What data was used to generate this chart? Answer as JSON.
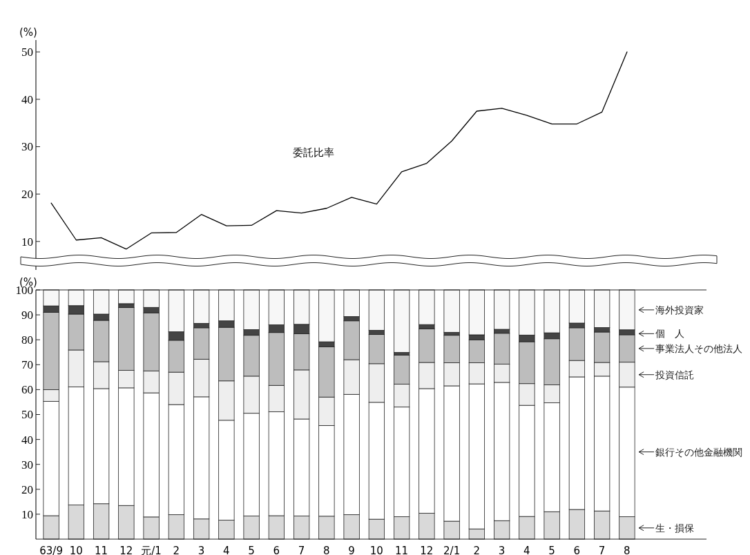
{
  "chart_data": [
    {
      "type": "line",
      "ylabel": "(%)",
      "categories": [
        null,
        null,
        null,
        null,
        null,
        null,
        null,
        null,
        null,
        null,
        null,
        null,
        null,
        null,
        null,
        null,
        null,
        null,
        null,
        null,
        null,
        null,
        null,
        null
      ],
      "series": [
        {
          "name": "委託比率",
          "color": "#000000",
          "values": [
            18.1,
            10.3,
            10.8,
            8.4,
            11.8,
            11.9,
            15.7,
            13.3,
            13.4,
            16.5,
            16.0,
            17.0,
            19.3,
            17.9,
            24.7,
            26.5,
            31.2,
            37.5,
            38.1,
            36.6,
            34.8,
            34.8,
            37.3,
            50.0
          ]
        }
      ],
      "ylim": [
        4,
        52.5
      ],
      "yticks": [
        10,
        20,
        30,
        40,
        50
      ],
      "grid": false
    },
    {
      "type": "bar",
      "stacked": true,
      "ylabel": "(%)",
      "categories": [
        "63/9",
        "10",
        "11",
        "12",
        "元/1",
        "2",
        "3",
        "4",
        "5",
        "6",
        "7",
        "8",
        "9",
        "10",
        "11",
        "12",
        "2/1",
        "2",
        "3",
        "4",
        "5",
        "6",
        "7",
        "8"
      ],
      "series": [
        {
          "name": "生・損保",
          "color": "#d9d9d9",
          "values": [
            9.4,
            13.7,
            14.2,
            13.5,
            8.9,
            9.8,
            8.1,
            7.6,
            9.3,
            9.4,
            9.3,
            9.2,
            9.8,
            8.0,
            9.0,
            10.4,
            7.2,
            4.1,
            7.4,
            9.1,
            11.0,
            11.9,
            11.3,
            9.0
          ]
        },
        {
          "name": "銀行その他金融機関",
          "color": "#ffffff",
          "values": [
            45.9,
            47.4,
            46.2,
            47.2,
            49.8,
            44.2,
            49.0,
            40.1,
            41.2,
            41.7,
            38.9,
            36.4,
            48.3,
            46.9,
            44.0,
            50.0,
            54.3,
            58.2,
            55.5,
            44.6,
            43.7,
            53.2,
            54.1,
            52.0
          ]
        },
        {
          "name": "投資信託",
          "color": "#eeeeee",
          "values": [
            4.7,
            14.8,
            10.8,
            7.0,
            8.8,
            13.0,
            15.1,
            15.8,
            14.9,
            10.6,
            19.7,
            11.4,
            13.9,
            15.5,
            9.2,
            10.5,
            9.3,
            8.5,
            7.3,
            8.7,
            7.2,
            6.6,
            5.5,
            10.0
          ]
        },
        {
          "name": "事業法人その他法人",
          "color": "#bdbdbd",
          "values": [
            31.0,
            14.4,
            16.6,
            25.2,
            23.3,
            12.8,
            12.6,
            21.5,
            16.4,
            21.2,
            14.5,
            20.2,
            15.6,
            11.7,
            11.6,
            13.5,
            11.0,
            9.2,
            12.4,
            16.8,
            18.5,
            13.1,
            12.2,
            11.0
          ]
        },
        {
          "name": "個　人",
          "color": "#444444",
          "values": [
            2.6,
            3.4,
            2.5,
            1.6,
            2.2,
            3.4,
            1.8,
            2.6,
            2.3,
            3.1,
            3.8,
            2.0,
            1.7,
            1.7,
            1.1,
            1.7,
            1.2,
            2.0,
            1.6,
            2.7,
            2.4,
            1.9,
            1.8,
            2.0
          ]
        },
        {
          "name": "海外投資家",
          "color": "#f7f7f7",
          "values": [
            6.4,
            6.3,
            9.7,
            5.5,
            7.0,
            16.8,
            13.4,
            12.4,
            15.9,
            14.0,
            13.8,
            20.8,
            10.7,
            16.2,
            25.1,
            13.9,
            17.0,
            18.0,
            15.8,
            18.1,
            17.2,
            13.3,
            15.1,
            16.0
          ]
        }
      ],
      "ylim": [
        0,
        100
      ],
      "yticks": [
        10,
        20,
        30,
        40,
        50,
        60,
        70,
        80,
        90,
        100
      ],
      "legend": "right",
      "grid": false
    }
  ]
}
